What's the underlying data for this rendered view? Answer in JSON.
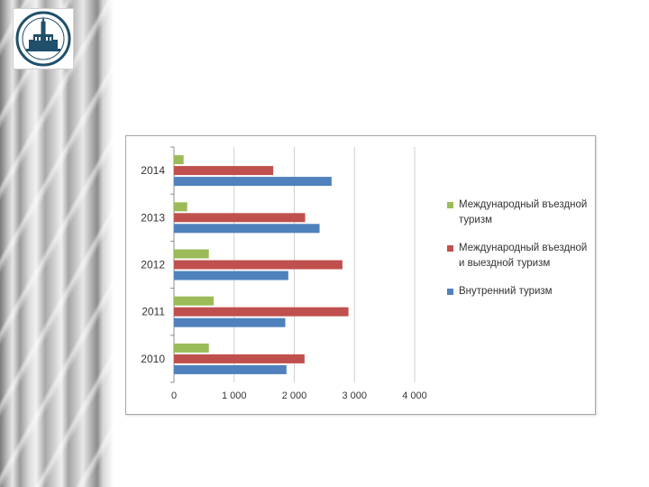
{
  "colors": {
    "international_inbound": "#9bbb59",
    "international_in_out": "#c0504d",
    "domestic": "#4f81bd"
  },
  "logo": {
    "icon": "university-seal-icon"
  },
  "chart_data": {
    "type": "bar",
    "orientation": "horizontal",
    "categories": [
      "2014",
      "2013",
      "2012",
      "2011",
      "2010"
    ],
    "series": [
      {
        "name": "Международный въездной туризм",
        "color": "#9bbb59",
        "values": [
          160,
          220,
          580,
          660,
          580
        ]
      },
      {
        "name": "Международный въездной и выездной туризм",
        "color": "#c0504d",
        "values": [
          1650,
          2180,
          2800,
          2900,
          2170
        ]
      },
      {
        "name": "Внутренний туризм",
        "color": "#4f81bd",
        "values": [
          2620,
          2420,
          1900,
          1850,
          1870
        ]
      }
    ],
    "xlim": [
      0,
      4000
    ],
    "xticks": [
      "0",
      "1 000",
      "2 000",
      "3 000",
      "4 000"
    ],
    "grid": "vertical",
    "legend_position": "right",
    "title": "",
    "xlabel": "",
    "ylabel": ""
  }
}
